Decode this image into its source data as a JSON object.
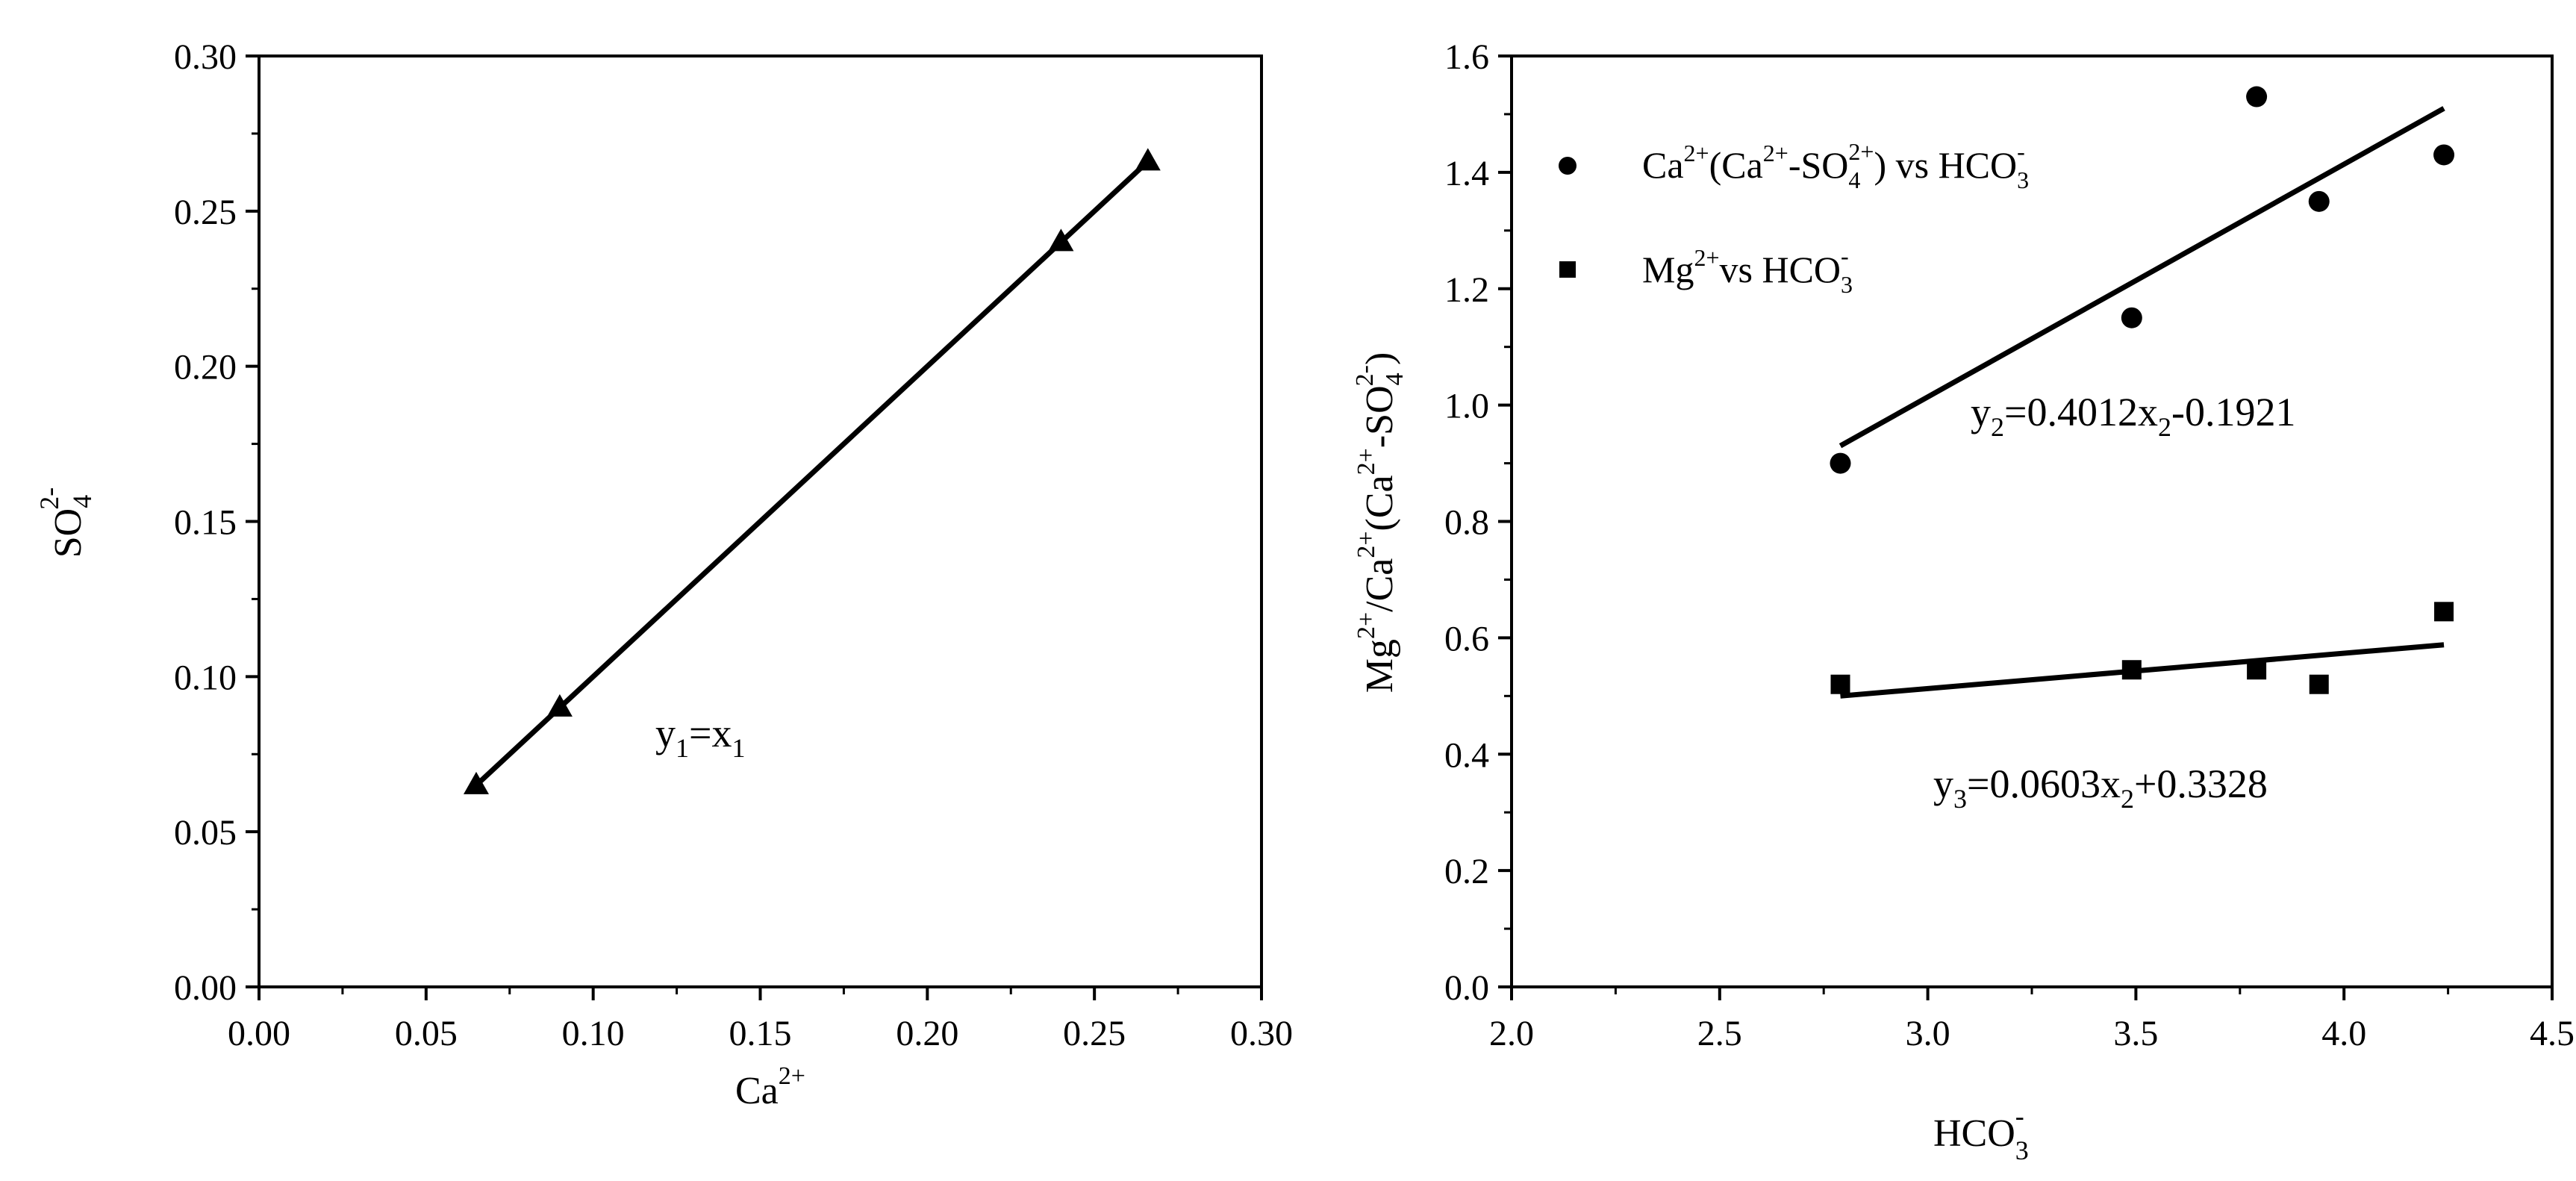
{
  "chart_data": [
    {
      "type": "scatter",
      "xlabel": "Ca",
      "xlabel_sup": "2+",
      "ylabel": "SO",
      "ylabel_sub": "4",
      "ylabel_sup": "2-",
      "xlim": [
        0.0,
        0.3
      ],
      "ylim": [
        0.0,
        0.3
      ],
      "x_ticks": [
        "0.00",
        "0.05",
        "0.10",
        "0.15",
        "0.20",
        "0.25",
        "0.30"
      ],
      "y_ticks": [
        "0.00",
        "0.05",
        "0.10",
        "0.15",
        "0.20",
        "0.25",
        "0.30"
      ],
      "series": [
        {
          "marker": "triangle",
          "x": [
            0.065,
            0.09,
            0.24,
            0.266
          ],
          "y": [
            0.065,
            0.09,
            0.24,
            0.266
          ]
        }
      ],
      "fit_lines": [
        {
          "x": [
            0.065,
            0.266
          ],
          "y": [
            0.065,
            0.266
          ]
        }
      ],
      "annotation": {
        "y": "y",
        "y_sub": "1",
        "eq": "=x",
        "x_sub": "1"
      }
    },
    {
      "type": "scatter",
      "xlabel": "HCO",
      "xlabel_sub": "3",
      "xlabel_sup": "-",
      "ylabel_parts": [
        "Mg",
        "2+",
        "/Ca",
        "2+",
        "(Ca",
        "2+",
        "-SO",
        "4",
        "2-",
        ")"
      ],
      "xlim": [
        2.0,
        4.5
      ],
      "ylim": [
        0.0,
        1.6
      ],
      "x_ticks": [
        "2.0",
        "2.5",
        "3.0",
        "3.5",
        "4.0",
        "4.5"
      ],
      "y_ticks": [
        "0.0",
        "0.2",
        "0.4",
        "0.6",
        "0.8",
        "1.0",
        "1.2",
        "1.4",
        "1.6"
      ],
      "series": [
        {
          "marker": "circle",
          "x": [
            2.79,
            3.49,
            3.79,
            3.94,
            4.24
          ],
          "y": [
            0.9,
            1.15,
            1.53,
            1.35,
            1.43
          ]
        },
        {
          "marker": "square",
          "x": [
            2.79,
            3.49,
            3.79,
            3.94,
            4.24
          ],
          "y": [
            0.52,
            0.545,
            0.545,
            0.52,
            0.645
          ]
        }
      ],
      "fit_lines": [
        {
          "x": [
            2.79,
            4.24
          ],
          "y": [
            0.93,
            1.51
          ]
        },
        {
          "x": [
            2.79,
            4.24
          ],
          "y": [
            0.5,
            0.588
          ]
        }
      ],
      "legend": [
        {
          "parts": [
            "Ca",
            "2+",
            "(Ca",
            "2+",
            "-SO",
            "4",
            "2+",
            ") vs HCO",
            "3",
            "-"
          ]
        },
        {
          "parts": [
            "Mg",
            "2+",
            "vs HCO",
            "3",
            "-"
          ]
        }
      ],
      "equations": [
        {
          "y": "y",
          "y_sub": "2",
          "a": "=0.4012x",
          "x_sub": "2",
          "b": "-0.1921"
        },
        {
          "y": "y",
          "y_sub": "3",
          "a": "=0.0603x",
          "x_sub": "2",
          "b": "+0.3328"
        }
      ]
    }
  ]
}
